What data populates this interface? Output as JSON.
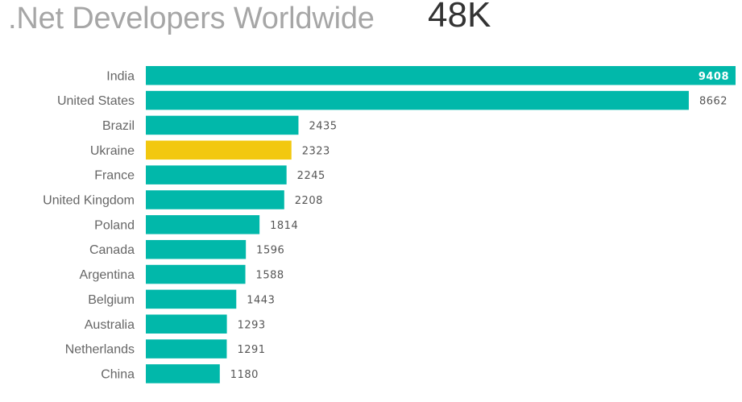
{
  "header": {
    "title": ".Net Developers Worldwide",
    "kpi": "48K"
  },
  "colors": {
    "bar": "#01b8aa",
    "highlight": "#f2c80f",
    "title": "#a6a6a6",
    "kpi": "#333333",
    "label": "#666666"
  },
  "chart_data": {
    "type": "bar",
    "orientation": "horizontal",
    "title": ".Net Developers Worldwide",
    "categories": [
      "India",
      "United States",
      "Brazil",
      "Ukraine",
      "France",
      "United Kingdom",
      "Poland",
      "Canada",
      "Argentina",
      "Belgium",
      "Australia",
      "Netherlands",
      "China"
    ],
    "values": [
      9408,
      8662,
      2435,
      2323,
      2245,
      2208,
      1814,
      1596,
      1588,
      1443,
      1293,
      1291,
      1180
    ],
    "highlighted_category": "Ukraine",
    "xlim": [
      0,
      9408
    ],
    "xlabel": "",
    "ylabel": "",
    "grid": false,
    "legend": "none",
    "data_labels": true
  }
}
